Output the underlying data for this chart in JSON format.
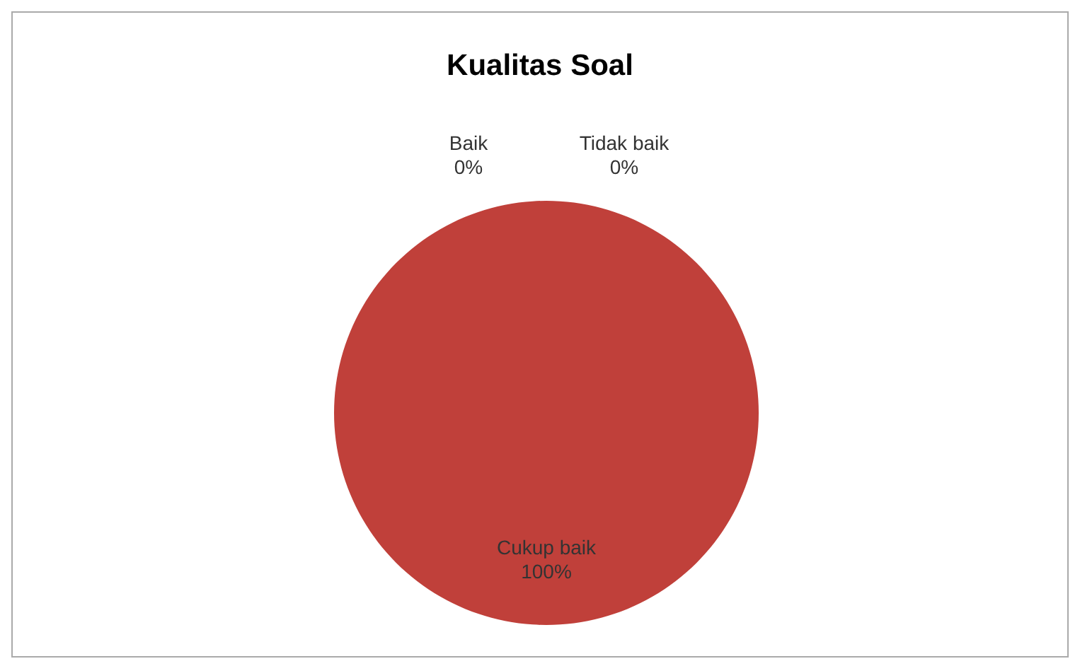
{
  "chart_data": {
    "type": "pie",
    "title": "Kualitas Soal",
    "categories": [
      "Baik",
      "Cukup baik",
      "Tidak baik"
    ],
    "values": [
      0,
      100,
      0
    ],
    "colors": [
      "#4f81bd",
      "#c0403a",
      "#9bbb59"
    ],
    "value_labels": [
      "0%",
      "100%",
      "0%"
    ],
    "legend": false
  }
}
